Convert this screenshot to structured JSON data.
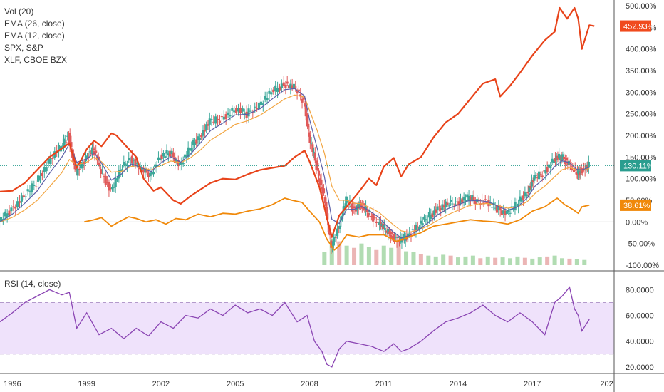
{
  "colors": {
    "spx": "#e8431a",
    "xlf": "#f0890a",
    "ema12": "#5b5fa8",
    "ema26": "#f2a541",
    "candle_up": "#3da89a",
    "candle_down": "#e05a5a",
    "vol_up": "#9ed39f",
    "vol_down": "#e6a3a3",
    "rsi_line": "#8a44b3",
    "rsi_band": "#efe2fb",
    "badge_main": "#2a9d8f",
    "badge_spx": "#f04a1d",
    "badge_xlf": "#f0890a"
  },
  "chart_data": [
    {
      "type": "line",
      "panel": "price",
      "x_ticks": [
        "1996",
        "1999",
        "2002",
        "2005",
        "2008",
        "2011",
        "2014",
        "2017",
        "202"
      ],
      "y_ticks": [
        "500.00%",
        "450.00%",
        "400.00%",
        "350.00%",
        "300.00%",
        "250.00%",
        "200.00%",
        "150.00%",
        "100.00%",
        "50.00%",
        "0.00%",
        "-50.00%",
        "-100.00%"
      ],
      "ylim": [
        -100,
        500
      ],
      "xlim": [
        1995.5,
        2020.3
      ],
      "legend": [
        "Vol (20)",
        "EMA (26, close)",
        "EMA (12, close)",
        "SPX, S&P",
        "XLF, CBOE BZX"
      ],
      "labels": {
        "main": "130.11%",
        "spx": "452.93%",
        "xlf": "38.61%"
      },
      "series": [
        {
          "name": "SPX, S&P",
          "x": [
            1995.5,
            1996.0,
            1996.5,
            1997.0,
            1997.5,
            1998.0,
            1998.3,
            1998.6,
            1999.0,
            1999.3,
            1999.6,
            2000.0,
            2000.2,
            2000.6,
            2001.0,
            2001.3,
            2001.7,
            2002.0,
            2002.5,
            2002.8,
            2003.2,
            2003.6,
            2004.0,
            2004.5,
            2005.0,
            2005.5,
            2006.0,
            2006.5,
            2007.0,
            2007.4,
            2007.8,
            2008.0,
            2008.4,
            2008.7,
            2008.9,
            2009.2,
            2009.5,
            2010.0,
            2010.4,
            2010.7,
            2011.0,
            2011.4,
            2011.7,
            2012.0,
            2012.5,
            2013.0,
            2013.5,
            2014.0,
            2014.5,
            2015.0,
            2015.5,
            2015.7,
            2016.1,
            2016.5,
            2017.0,
            2017.5,
            2017.9,
            2018.1,
            2018.4,
            2018.7,
            2018.85,
            2019.0,
            2019.3,
            2019.5
          ],
          "values": [
            70,
            72,
            90,
            120,
            150,
            170,
            182,
            125,
            168,
            188,
            175,
            205,
            200,
            175,
            150,
            100,
            72,
            80,
            50,
            42,
            60,
            75,
            90,
            100,
            98,
            110,
            120,
            125,
            130,
            150,
            165,
            140,
            80,
            10,
            -35,
            15,
            35,
            70,
            100,
            85,
            128,
            148,
            105,
            133,
            150,
            195,
            230,
            250,
            285,
            320,
            330,
            290,
            315,
            345,
            385,
            420,
            440,
            495,
            470,
            495,
            470,
            400,
            455,
            453
          ]
        },
        {
          "name": "XLF, CBOE BZX",
          "x": [
            1998.9,
            1999.3,
            1999.6,
            2000.0,
            2000.3,
            2000.7,
            2001.0,
            2001.4,
            2001.8,
            2002.2,
            2002.6,
            2003.0,
            2003.5,
            2004.0,
            2004.5,
            2005.0,
            2005.5,
            2006.0,
            2006.5,
            2007.0,
            2007.3,
            2007.7,
            2008.0,
            2008.4,
            2008.7,
            2009.0,
            2009.2,
            2009.5,
            2010.0,
            2010.4,
            2011.0,
            2011.5,
            2011.8,
            2012.0,
            2012.5,
            2013.0,
            2013.5,
            2014.0,
            2014.5,
            2015.0,
            2015.5,
            2016.0,
            2016.5,
            2017.0,
            2017.5,
            2018.0,
            2018.3,
            2018.6,
            2018.85,
            2019.0,
            2019.3
          ],
          "values": [
            0,
            5,
            10,
            -10,
            0,
            12,
            8,
            0,
            5,
            -5,
            8,
            5,
            18,
            12,
            20,
            18,
            25,
            30,
            40,
            55,
            50,
            45,
            25,
            0,
            -40,
            -65,
            -55,
            -30,
            -35,
            -30,
            -30,
            -45,
            -40,
            -35,
            -25,
            -10,
            -5,
            0,
            5,
            2,
            0,
            -5,
            5,
            25,
            35,
            55,
            40,
            30,
            20,
            35,
            39
          ]
        }
      ]
    },
    {
      "type": "line",
      "panel": "rsi",
      "title": "RSI (14, close)",
      "y_ticks": [
        "80.0000",
        "60.0000",
        "40.0000",
        "20.0000"
      ],
      "ylim": [
        16,
        88
      ],
      "bands": [
        70,
        30
      ],
      "x": [
        1995.5,
        1996.0,
        1996.5,
        1997.0,
        1997.5,
        1998.0,
        1998.3,
        1998.6,
        1999.0,
        1999.5,
        2000.0,
        2000.5,
        2001.0,
        2001.5,
        2002.0,
        2002.5,
        2003.0,
        2003.5,
        2004.0,
        2004.5,
        2005.0,
        2005.5,
        2006.0,
        2006.5,
        2007.0,
        2007.5,
        2007.9,
        2008.2,
        2008.5,
        2008.7,
        2008.9,
        2009.2,
        2009.5,
        2010.0,
        2010.5,
        2011.0,
        2011.4,
        2011.7,
        2012.0,
        2012.5,
        2013.0,
        2013.5,
        2014.0,
        2014.5,
        2015.0,
        2015.5,
        2016.0,
        2016.5,
        2017.0,
        2017.5,
        2017.9,
        2018.2,
        2018.5,
        2018.7,
        2018.85,
        2019.0,
        2019.3
      ],
      "values": [
        55,
        62,
        70,
        75,
        80,
        76,
        78,
        50,
        62,
        45,
        50,
        42,
        50,
        44,
        55,
        50,
        60,
        58,
        65,
        60,
        68,
        62,
        65,
        60,
        70,
        55,
        60,
        40,
        32,
        22,
        20,
        34,
        40,
        38,
        36,
        32,
        38,
        32,
        34,
        40,
        48,
        55,
        58,
        62,
        68,
        60,
        55,
        62,
        55,
        45,
        70,
        75,
        82,
        65,
        60,
        48,
        57
      ]
    },
    {
      "type": "bar",
      "panel": "volume",
      "title": "Vol (20)",
      "x": [
        2008.6,
        2008.9,
        2009.2,
        2009.5,
        2009.8,
        2010.1,
        2010.4,
        2010.7,
        2011.0,
        2011.3,
        2011.6,
        2011.9,
        2012.2,
        2012.5,
        2012.8,
        2013.1,
        2013.4,
        2013.7,
        2014.0,
        2014.3,
        2014.6,
        2014.9,
        2015.2,
        2015.5,
        2015.8,
        2016.1,
        2016.4,
        2016.7,
        2017.0,
        2017.3,
        2017.6,
        2017.9,
        2018.2,
        2018.5,
        2018.8,
        2019.1
      ],
      "values": [
        -70,
        -40,
        -45,
        -55,
        -60,
        -50,
        -58,
        -65,
        -55,
        -60,
        -45,
        -68,
        -70,
        -75,
        -78,
        -80,
        -76,
        -78,
        -82,
        -80,
        -78,
        -84,
        -80,
        -83,
        -82,
        -84,
        -80,
        -83,
        -85,
        -82,
        -80,
        -78,
        -84,
        -85,
        -86,
        -88
      ],
      "up": [
        true,
        true,
        false,
        true,
        false,
        true,
        true,
        false,
        true,
        true,
        false,
        true,
        true,
        false,
        true,
        true,
        true,
        false,
        true,
        true,
        true,
        false,
        true,
        false,
        true,
        true,
        true,
        false,
        true,
        true,
        false,
        true,
        true,
        false,
        true,
        true
      ]
    }
  ]
}
